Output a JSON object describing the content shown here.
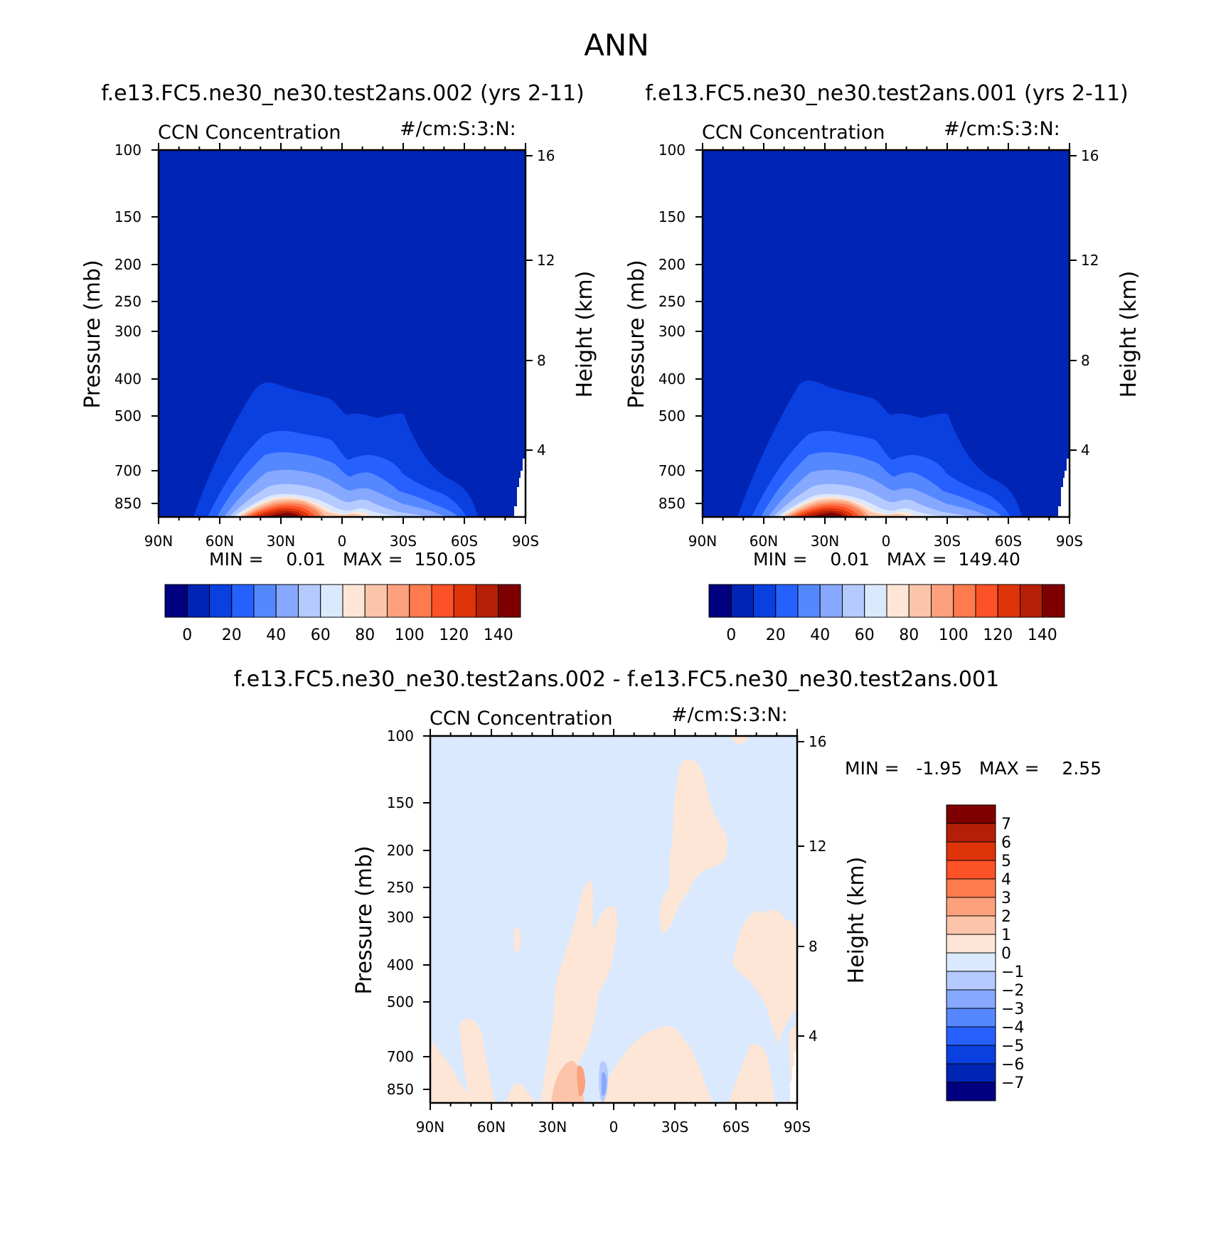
{
  "figure": {
    "title": "ANN"
  },
  "chart_data": [
    {
      "type": "heatmap",
      "case_title": "f.e13.FC5.ne30_ne30.test2ans.002 (yrs 2-11)",
      "variable": "CCN Concentration",
      "units": "#/cm:S:3:N:",
      "ylabel": "Pressure (mb)",
      "ylabel_right": "Height (km)",
      "x_tick_labels": [
        "90N",
        "60N",
        "30N",
        "0",
        "30S",
        "60S",
        "90S"
      ],
      "y_tick_labels": [
        "100",
        "150",
        "200",
        "250",
        "300",
        "400",
        "500",
        "700",
        "850"
      ],
      "y_right_tick_labels": [
        "16",
        "12",
        "8",
        "4"
      ],
      "stats_text": "MIN =    0.01   MAX =  150.05",
      "min": 0.01,
      "max": 150.05,
      "colorbar_levels": [
        0,
        10,
        20,
        30,
        40,
        50,
        60,
        70,
        80,
        90,
        100,
        110,
        120,
        130,
        140
      ],
      "colorbar_tick_labels": [
        "0",
        "20",
        "40",
        "60",
        "80",
        "100",
        "120",
        "140"
      ]
    },
    {
      "type": "heatmap",
      "case_title": "f.e13.FC5.ne30_ne30.test2ans.001 (yrs 2-11)",
      "variable": "CCN Concentration",
      "units": "#/cm:S:3:N:",
      "ylabel": "Pressure (mb)",
      "ylabel_right": "Height (km)",
      "x_tick_labels": [
        "90N",
        "60N",
        "30N",
        "0",
        "30S",
        "60S",
        "90S"
      ],
      "y_tick_labels": [
        "100",
        "150",
        "200",
        "250",
        "300",
        "400",
        "500",
        "700",
        "850"
      ],
      "y_right_tick_labels": [
        "16",
        "12",
        "8",
        "4"
      ],
      "stats_text": "MIN =    0.01   MAX =  149.40",
      "min": 0.01,
      "max": 149.4,
      "colorbar_levels": [
        0,
        10,
        20,
        30,
        40,
        50,
        60,
        70,
        80,
        90,
        100,
        110,
        120,
        130,
        140
      ],
      "colorbar_tick_labels": [
        "0",
        "20",
        "40",
        "60",
        "80",
        "100",
        "120",
        "140"
      ]
    },
    {
      "type": "heatmap",
      "case_title": "f.e13.FC5.ne30_ne30.test2ans.002 - f.e13.FC5.ne30_ne30.test2ans.001",
      "variable": "CCN Concentration",
      "units": "#/cm:S:3:N:",
      "ylabel": "Pressure (mb)",
      "ylabel_right": "Height (km)",
      "x_tick_labels": [
        "90N",
        "60N",
        "30N",
        "0",
        "30S",
        "60S",
        "90S"
      ],
      "y_tick_labels": [
        "100",
        "150",
        "200",
        "250",
        "300",
        "400",
        "500",
        "700",
        "850"
      ],
      "y_right_tick_labels": [
        "16",
        "12",
        "8",
        "4"
      ],
      "stats_text": "MIN =   -1.95   MAX =    2.55",
      "min": -1.95,
      "max": 2.55,
      "colorbar_levels": [
        7,
        6,
        5,
        4,
        3,
        2,
        1,
        0,
        -1,
        -2,
        -3,
        -4,
        -5,
        -6,
        -7
      ],
      "colorbar_tick_labels": [
        "7",
        "6",
        "5",
        "4",
        "3",
        "2",
        "1",
        "0",
        "−1",
        "−2",
        "−3",
        "−4",
        "−5",
        "−6",
        "−7"
      ]
    }
  ],
  "palettes": {
    "ccn": [
      "#000080",
      "#0024b4",
      "#0a3fe0",
      "#2660ff",
      "#5588ff",
      "#86a8ff",
      "#b5caff",
      "#dae9fd",
      "#fde6d6",
      "#fcc4a9",
      "#fca17c",
      "#fd7b4d",
      "#fd5127",
      "#df3309",
      "#b51f08",
      "#7f0000"
    ],
    "diff": [
      "#7f0000",
      "#b51f08",
      "#df3309",
      "#fd5127",
      "#fd7b4d",
      "#fca17c",
      "#fcc4a9",
      "#fde6d6",
      "#dae9fd",
      "#b5caff",
      "#86a8ff",
      "#5588ff",
      "#2660ff",
      "#0a3fe0",
      "#0024b4",
      "#000080"
    ]
  }
}
